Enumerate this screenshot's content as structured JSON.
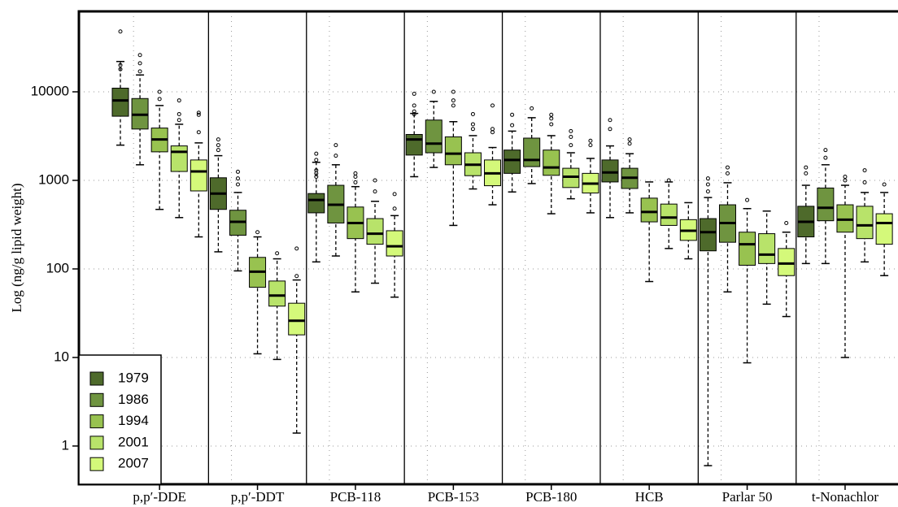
{
  "chart_data": {
    "type": "boxplot",
    "y_label": "Log (ng/g lipid weight)",
    "log_scale": true,
    "grid": true,
    "legend_position": "bottom-left",
    "categories": [
      "p,p′-DDE",
      "p,p′-DDT",
      "PCB-118",
      "PCB-153",
      "PCB-180",
      "HCB",
      "Parlar 50",
      "t-Nonachlor"
    ],
    "ylim": [
      0.37,
      81000
    ],
    "yticks": [
      1,
      10,
      100,
      1000,
      10000
    ],
    "series": [
      {
        "name": "1979",
        "color": "#4e6a2b",
        "boxes": [
          {
            "min": 2500,
            "q1": 5300,
            "median": 8000,
            "q3": 11000,
            "max": 22000,
            "outliers": [
              48000,
              20000,
              18000
            ]
          },
          {
            "min": 156,
            "q1": 470,
            "median": 710,
            "q3": 1070,
            "max": 1900,
            "outliers": [
              2900,
              2500,
              2200
            ]
          },
          {
            "min": 120,
            "q1": 430,
            "median": 600,
            "q3": 710,
            "max": 1600,
            "outliers": [
              2000,
              1700,
              1300,
              1200,
              1100
            ]
          },
          {
            "min": 1100,
            "q1": 1930,
            "median": 2900,
            "q3": 3300,
            "max": 5700,
            "outliers": [
              9500,
              7000,
              6000,
              5600
            ]
          },
          {
            "min": 740,
            "q1": 1200,
            "median": 1700,
            "q3": 2200,
            "max": 3600,
            "outliers": [
              5500,
              4200
            ]
          },
          {
            "min": 380,
            "q1": 960,
            "median": 1230,
            "q3": 1700,
            "max": 2450,
            "outliers": [
              4800,
              3800
            ]
          },
          {
            "min": 0.6,
            "q1": 160,
            "median": 260,
            "q3": 370,
            "max": 640,
            "outliers": [
              1050,
              900,
              750
            ]
          },
          {
            "min": 115,
            "q1": 230,
            "median": 340,
            "q3": 510,
            "max": 880,
            "outliers": [
              1400,
              1200
            ]
          }
        ]
      },
      {
        "name": "1986",
        "color": "#6f9440",
        "boxes": [
          {
            "min": 1500,
            "q1": 3800,
            "median": 5500,
            "q3": 8400,
            "max": 15500,
            "outliers": [
              26000,
              21000,
              17000
            ]
          },
          {
            "min": 95,
            "q1": 240,
            "median": 340,
            "q3": 460,
            "max": 730,
            "outliers": [
              1250,
              1050,
              900
            ]
          },
          {
            "min": 140,
            "q1": 330,
            "median": 530,
            "q3": 880,
            "max": 1500,
            "outliers": [
              2500,
              1900
            ]
          },
          {
            "min": 1400,
            "q1": 2050,
            "median": 2600,
            "q3": 4800,
            "max": 7800,
            "outliers": [
              10000
            ]
          },
          {
            "min": 920,
            "q1": 1430,
            "median": 1700,
            "q3": 3000,
            "max": 5100,
            "outliers": [
              6500
            ]
          },
          {
            "min": 430,
            "q1": 810,
            "median": 1070,
            "q3": 1370,
            "max": 2000,
            "outliers": [
              2900,
              2600
            ]
          },
          {
            "min": 55,
            "q1": 200,
            "median": 330,
            "q3": 530,
            "max": 940,
            "outliers": [
              1400,
              1200
            ]
          },
          {
            "min": 115,
            "q1": 350,
            "median": 490,
            "q3": 820,
            "max": 1500,
            "outliers": [
              2200,
              1800
            ]
          }
        ]
      },
      {
        "name": "1994",
        "color": "#98c250",
        "boxes": [
          {
            "min": 470,
            "q1": 2100,
            "median": 2900,
            "q3": 3900,
            "max": 7000,
            "outliers": [
              10000,
              8300
            ]
          },
          {
            "min": 11,
            "q1": 62,
            "median": 93,
            "q3": 135,
            "max": 230,
            "outliers": [
              260
            ]
          },
          {
            "min": 55,
            "q1": 220,
            "median": 330,
            "q3": 500,
            "max": 850,
            "outliers": [
              1200,
              1100,
              950
            ]
          },
          {
            "min": 310,
            "q1": 1500,
            "median": 2000,
            "q3": 3100,
            "max": 4600,
            "outliers": [
              10000,
              8000,
              7000
            ]
          },
          {
            "min": 420,
            "q1": 1140,
            "median": 1400,
            "q3": 2200,
            "max": 3200,
            "outliers": [
              5500,
              5000,
              4300
            ]
          },
          {
            "min": 72,
            "q1": 340,
            "median": 440,
            "q3": 630,
            "max": 960,
            "outliers": []
          },
          {
            "min": 8.7,
            "q1": 110,
            "median": 190,
            "q3": 260,
            "max": 480,
            "outliers": [
              600
            ]
          },
          {
            "min": 10,
            "q1": 260,
            "median": 360,
            "q3": 530,
            "max": 880,
            "outliers": [
              1100,
              1000
            ]
          }
        ]
      },
      {
        "name": "2001",
        "color": "#b8e36a",
        "boxes": [
          {
            "min": 380,
            "q1": 1260,
            "median": 2100,
            "q3": 2450,
            "max": 4300,
            "outliers": [
              8000,
              5600,
              4800
            ]
          },
          {
            "min": 9.5,
            "q1": 38,
            "median": 50,
            "q3": 73,
            "max": 130,
            "outliers": [
              150
            ]
          },
          {
            "min": 69,
            "q1": 190,
            "median": 250,
            "q3": 370,
            "max": 580,
            "outliers": [
              1000,
              750
            ]
          },
          {
            "min": 800,
            "q1": 1130,
            "median": 1500,
            "q3": 2050,
            "max": 3200,
            "outliers": [
              5600,
              4300,
              3800
            ]
          },
          {
            "min": 620,
            "q1": 830,
            "median": 1100,
            "q3": 1370,
            "max": 2050,
            "outliers": [
              3600,
              3100,
              2500
            ]
          },
          {
            "min": 170,
            "q1": 310,
            "median": 380,
            "q3": 540,
            "max": 960,
            "outliers": [
              1000
            ]
          },
          {
            "min": 40,
            "q1": 115,
            "median": 145,
            "q3": 250,
            "max": 450,
            "outliers": []
          },
          {
            "min": 120,
            "q1": 220,
            "median": 310,
            "q3": 510,
            "max": 730,
            "outliers": [
              1300,
              950
            ]
          }
        ]
      },
      {
        "name": "2007",
        "color": "#d4f97a",
        "boxes": [
          {
            "min": 230,
            "q1": 760,
            "median": 1260,
            "q3": 1700,
            "max": 2650,
            "outliers": [
              5800,
              5500,
              3500
            ]
          },
          {
            "min": 1.4,
            "q1": 18,
            "median": 26,
            "q3": 41,
            "max": 75,
            "outliers": [
              170,
              83
            ]
          },
          {
            "min": 48,
            "q1": 140,
            "median": 180,
            "q3": 270,
            "max": 400,
            "outliers": [
              700,
              480
            ]
          },
          {
            "min": 530,
            "q1": 870,
            "median": 1200,
            "q3": 1700,
            "max": 2350,
            "outliers": [
              7000,
              3800,
              3500
            ]
          },
          {
            "min": 430,
            "q1": 720,
            "median": 920,
            "q3": 1200,
            "max": 1770,
            "outliers": [
              2800,
              2500
            ]
          },
          {
            "min": 130,
            "q1": 210,
            "median": 270,
            "q3": 360,
            "max": 560,
            "outliers": []
          },
          {
            "min": 29,
            "q1": 84,
            "median": 115,
            "q3": 170,
            "max": 260,
            "outliers": [
              330
            ]
          },
          {
            "min": 84,
            "q1": 190,
            "median": 330,
            "q3": 420,
            "max": 730,
            "outliers": [
              900
            ]
          }
        ]
      }
    ]
  }
}
